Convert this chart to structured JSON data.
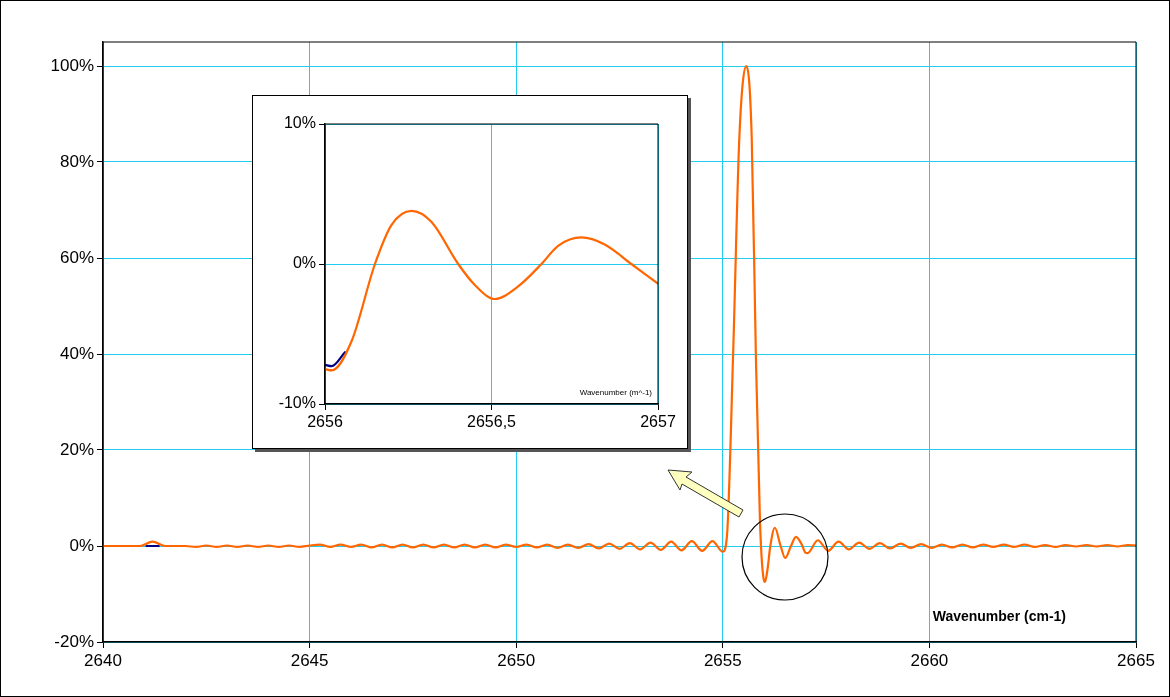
{
  "chart_data": [
    {
      "type": "line",
      "xlabel": "Wavenumber (cm-1)",
      "marker": "none",
      "grid": true,
      "xlim": [
        2640,
        2665
      ],
      "xticks": [
        2640,
        2645,
        2650,
        2655,
        2660,
        2665
      ],
      "ylim": [
        -20,
        105
      ],
      "yticks": [
        {
          "value": -20,
          "label": "-20%"
        },
        {
          "value": 0,
          "label": "0%"
        },
        {
          "value": 20,
          "label": "20%"
        },
        {
          "value": 40,
          "label": "40%"
        },
        {
          "value": 60,
          "label": "60%"
        },
        {
          "value": 80,
          "label": "80%"
        },
        {
          "value": 100,
          "label": "100%"
        }
      ],
      "series": [
        {
          "color": "#000080",
          "x": [
            2641.05,
            2641.2,
            2641.35
          ],
          "values": [
            0,
            0,
            0
          ]
        },
        {
          "color": "#ff6600",
          "x": [
            2640,
            2640.5,
            2640.9,
            2641.2,
            2641.5,
            2642,
            2642.25,
            2642.5,
            2642.75,
            2643,
            2643.25,
            2643.5,
            2643.75,
            2644,
            2644.25,
            2644.5,
            2644.75,
            2645,
            2645.25,
            2645.5,
            2645.75,
            2646,
            2646.25,
            2646.5,
            2646.75,
            2647,
            2647.25,
            2647.5,
            2647.75,
            2648,
            2648.25,
            2648.5,
            2648.75,
            2649,
            2649.25,
            2649.5,
            2649.75,
            2650,
            2650.25,
            2650.5,
            2650.75,
            2651,
            2651.25,
            2651.5,
            2651.75,
            2652,
            2652.25,
            2652.5,
            2652.75,
            2653,
            2653.25,
            2653.5,
            2653.75,
            2654,
            2654.25,
            2654.5,
            2654.75,
            2655,
            2655.1,
            2655.25,
            2655.4,
            2655.57,
            2655.7,
            2655.8,
            2655.9,
            2656,
            2656.02,
            2656.08,
            2656.15,
            2656.26,
            2656.4,
            2656.51,
            2656.65,
            2656.77,
            2656.9,
            2657,
            2657.05,
            2657.3,
            2657.55,
            2657.8,
            2658.05,
            2658.3,
            2658.55,
            2658.8,
            2659.05,
            2659.3,
            2659.55,
            2659.8,
            2660.05,
            2660.3,
            2660.55,
            2660.8,
            2661.05,
            2661.3,
            2661.55,
            2661.8,
            2662.05,
            2662.3,
            2662.55,
            2662.8,
            2663.05,
            2663.3,
            2663.55,
            2663.8,
            2664.05,
            2664.3,
            2664.55,
            2664.8,
            2665
          ],
          "values": [
            0,
            0,
            0,
            0.9,
            0,
            0,
            -0.2,
            0.1,
            -0.2,
            0.1,
            -0.2,
            0.1,
            -0.2,
            0.1,
            -0.2,
            0.1,
            -0.2,
            0.1,
            0.3,
            -0.2,
            0.3,
            -0.2,
            0.3,
            -0.3,
            0.3,
            -0.3,
            0.3,
            -0.3,
            0.3,
            -0.3,
            0.3,
            -0.3,
            0.3,
            -0.3,
            0.3,
            -0.3,
            0.3,
            -0.2,
            0.3,
            -0.3,
            0.3,
            -0.4,
            0.3,
            -0.4,
            0.4,
            -0.5,
            0.5,
            -0.6,
            0.6,
            -0.7,
            0.7,
            -0.8,
            0.9,
            -0.9,
            1,
            -1,
            1,
            -1.2,
            2,
            40,
            85,
            100,
            85,
            40,
            5,
            -7.3,
            -7.5,
            -5,
            0,
            3.8,
            0,
            -2.5,
            0,
            1.9,
            0.5,
            -1.4,
            -1.5,
            1.2,
            -1,
            0.9,
            -0.7,
            0.7,
            -0.6,
            0.6,
            -0.5,
            0.5,
            -0.4,
            0.4,
            -0.4,
            0.3,
            -0.3,
            0.3,
            -0.3,
            0.3,
            -0.2,
            0.3,
            -0.2,
            0.3,
            -0.2,
            0.2,
            -0.2,
            0.2,
            -0.1,
            0.2,
            -0.1,
            0.2,
            -0.1,
            0.2,
            0.1
          ]
        }
      ]
    },
    {
      "type": "line",
      "xlabel": "Wavenumber (m^-1)",
      "marker": "none",
      "grid": true,
      "xlim": [
        2656,
        2657
      ],
      "xticks": [
        2656,
        {
          "value": 2656.5,
          "label": "2656,5"
        },
        2657
      ],
      "ylim": [
        -10,
        10
      ],
      "yticks": [
        {
          "value": -10,
          "label": "-10%"
        },
        {
          "value": 0,
          "label": "0%"
        },
        {
          "value": 10,
          "label": "10%"
        }
      ],
      "series": [
        {
          "color": "#000080",
          "x": [
            2656,
            2656.02,
            2656.06
          ],
          "values": [
            -7.2,
            -7.3,
            -6.3
          ]
        },
        {
          "color": "#ff6600",
          "x": [
            2656,
            2656.02,
            2656.08,
            2656.15,
            2656.2,
            2656.26,
            2656.32,
            2656.4,
            2656.45,
            2656.51,
            2656.58,
            2656.65,
            2656.7,
            2656.77,
            2656.84,
            2656.92,
            2657
          ],
          "values": [
            -7.5,
            -7.6,
            -5.5,
            0,
            2.8,
            3.8,
            3,
            0,
            -1.5,
            -2.5,
            -1.6,
            0,
            1.3,
            1.9,
            1.4,
            0,
            -1.4
          ]
        }
      ]
    }
  ]
}
